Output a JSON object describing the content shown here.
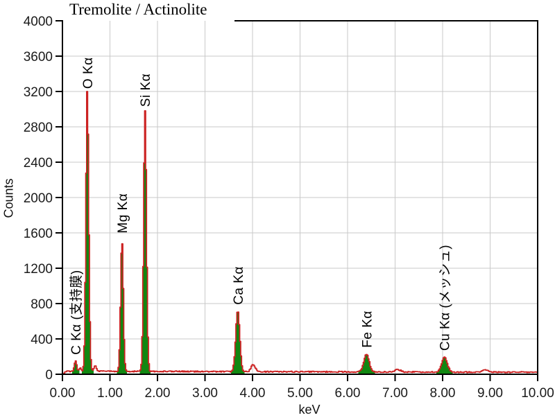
{
  "title": "Tremolite / Actinolite",
  "colors": {
    "spectrum_line": "#cc2222",
    "peak_fill": "#118711",
    "grid": "#c9c9c9",
    "axis": "#000000",
    "text": "#1a1a1a"
  },
  "axes": {
    "x": {
      "label": "keV",
      "tick_values": [
        0,
        1,
        2,
        3,
        4,
        5,
        6,
        7,
        8,
        9,
        10
      ],
      "tick_labels": [
        "0.00",
        "1.00",
        "2.00",
        "3.00",
        "4.00",
        "5.00",
        "6.00",
        "7.00",
        "8.00",
        "9.00",
        "10.00"
      ]
    },
    "y": {
      "label": "Counts",
      "tick_values": [
        0,
        400,
        800,
        1200,
        1600,
        2000,
        2400,
        2800,
        3200,
        3600,
        4000
      ],
      "tick_labels": [
        "0",
        "400",
        "800",
        "1200",
        "1600",
        "2000",
        "2400",
        "2800",
        "3200",
        "3600",
        "4000"
      ]
    }
  },
  "chart_data": {
    "type": "area",
    "subtype": "eds-xray-spectrum",
    "title": "Tremolite / Actinolite",
    "xlabel": "keV",
    "ylabel": "Counts",
    "xlim": [
      0,
      10
    ],
    "ylim": [
      0,
      4000
    ],
    "grid": true,
    "background_counts": 30,
    "channel_width_kev": 0.02,
    "peaks": [
      {
        "label": "C Kα (支持膜)",
        "kev": 0.277,
        "counts": 150,
        "sigma": 0.024,
        "identified": true
      },
      {
        "label": "",
        "kev": 0.375,
        "counts": 75,
        "sigma": 0.018,
        "identified": false
      },
      {
        "label": "O Kα",
        "kev": 0.525,
        "counts": 3160,
        "sigma": 0.03,
        "identified": true
      },
      {
        "label": "",
        "kev": 0.69,
        "counts": 100,
        "sigma": 0.026,
        "identified": false
      },
      {
        "label": "Mg Kα",
        "kev": 1.253,
        "counts": 1525,
        "sigma": 0.028,
        "identified": true
      },
      {
        "label": "Si Kα",
        "kev": 1.74,
        "counts": 2955,
        "sigma": 0.03,
        "identified": true
      },
      {
        "label": "Ca Kα",
        "kev": 3.69,
        "counts": 715,
        "sigma": 0.042,
        "identified": true
      },
      {
        "label": "",
        "kev": 4.013,
        "counts": 115,
        "sigma": 0.042,
        "identified": false
      },
      {
        "label": "Fe Kα",
        "kev": 6.4,
        "counts": 230,
        "sigma": 0.055,
        "identified": true
      },
      {
        "label": "",
        "kev": 7.058,
        "counts": 58,
        "sigma": 0.055,
        "identified": false
      },
      {
        "label": "Cu Kα (メッシュ)",
        "kev": 8.04,
        "counts": 195,
        "sigma": 0.058,
        "identified": true
      },
      {
        "label": "",
        "kev": 8.89,
        "counts": 58,
        "sigma": 0.06,
        "identified": false
      }
    ]
  }
}
